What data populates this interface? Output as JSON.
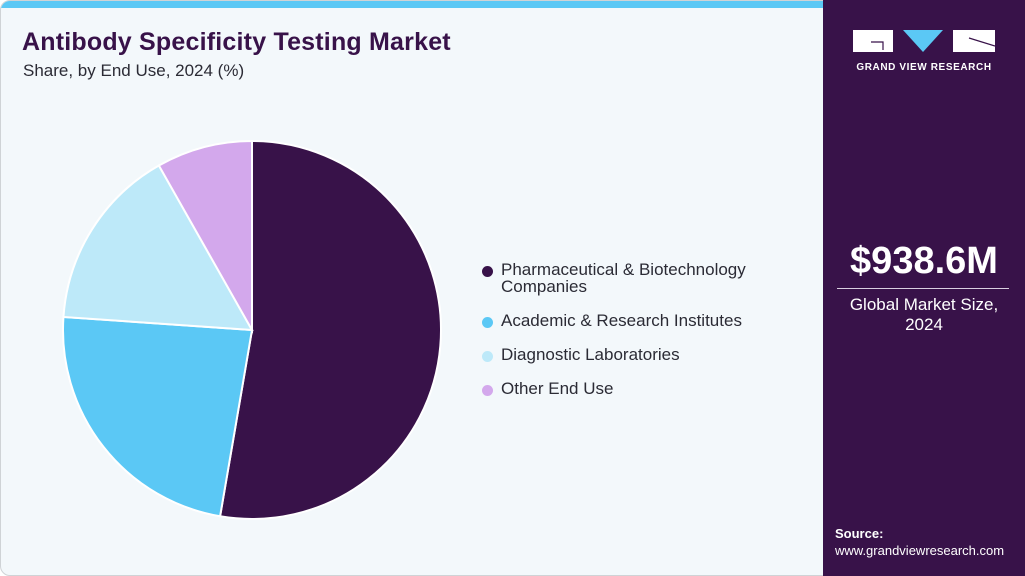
{
  "header": {
    "title": "Antibody Specificity Testing Market",
    "subtitle": "Share, by End Use, 2024 (%)"
  },
  "brand": {
    "name": "GRAND VIEW RESEARCH",
    "logo_icon": "gvr-logo-icon"
  },
  "colors": {
    "accent_bar": "#5bc8f5",
    "side_panel": "#381249",
    "title": "#381249"
  },
  "summary": {
    "value": "$938.6M",
    "label_line1": "Global Market Size,",
    "label_line2": "2024"
  },
  "source": {
    "label": "Source:",
    "url": "www.grandviewresearch.com"
  },
  "legend": [
    {
      "label": "Pharmaceutical & Biotechnology Companies",
      "color": "#381249"
    },
    {
      "label": "Academic & Research Institutes",
      "color": "#5bc8f5"
    },
    {
      "label": "Diagnostic Laboratories",
      "color": "#bde9f9"
    },
    {
      "label": "Other End Use",
      "color": "#d3a8ec"
    }
  ],
  "chart_data": {
    "type": "pie",
    "title": "Antibody Specificity Testing Market",
    "subtitle": "Share, by End Use, 2024 (%)",
    "categories": [
      "Pharmaceutical & Biotechnology Companies",
      "Academic & Research Institutes",
      "Diagnostic Laboratories",
      "Other End Use"
    ],
    "values": [
      52.7,
      23.4,
      15.7,
      8.2
    ],
    "colors": [
      "#381249",
      "#5bc8f5",
      "#bde9f9",
      "#d3a8ec"
    ],
    "start_angle": "12 o'clock, clockwise",
    "legend_position": "right",
    "center": [
      251,
      329
    ],
    "radius": 189
  }
}
